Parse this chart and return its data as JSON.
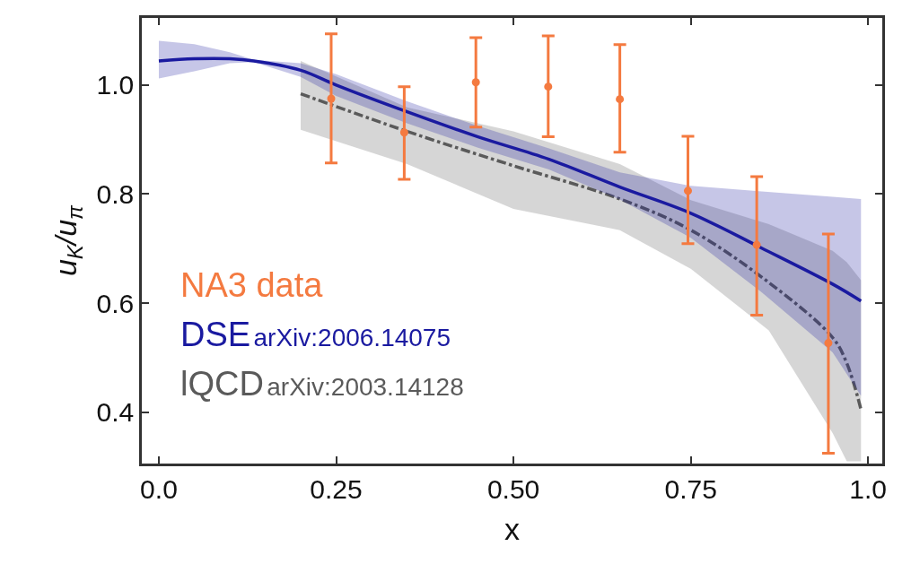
{
  "chart_data": {
    "type": "line",
    "xlabel": "x",
    "ylabel": "u$_{K}$/u$_{π}$",
    "xlim": [
      -0.024,
      1.02
    ],
    "ylim": [
      0.306,
      1.123
    ],
    "xticks": [
      {
        "value": 0,
        "label": "0.0"
      },
      0.25,
      {
        "value": 0.5,
        "label": "0.50"
      },
      0.75,
      {
        "value": 1,
        "label": "1.0"
      }
    ],
    "yticks": [
      0.4,
      0.6,
      0.8,
      {
        "value": 1,
        "label": "1.0"
      }
    ],
    "grid": false,
    "annotations": [
      "arXiv:2006.14075",
      "arXiv:2003.14128"
    ],
    "series": [
      {
        "name": "NA3 data",
        "type": "scatter",
        "marker": "circle",
        "color": "#f47a40",
        "x": [
          0.243,
          0.346,
          0.447,
          0.549,
          0.65,
          0.746,
          0.843,
          0.944
        ],
        "values": [
          0.975,
          0.913,
          1.005,
          0.997,
          0.974,
          0.806,
          0.707,
          0.527
        ],
        "errors": [
          [
            0.857,
            1.094
          ],
          [
            0.827,
            0.997
          ],
          [
            0.923,
            1.087
          ],
          [
            0.905,
            1.09
          ],
          [
            0.877,
            1.074
          ],
          [
            0.709,
            0.906
          ],
          [
            0.578,
            0.832
          ],
          [
            0.325,
            0.727
          ]
        ]
      },
      {
        "name": "DSE",
        "line_style": "solid",
        "color": "#1a1aa0",
        "x": [
          0,
          0.05,
          0.1,
          0.134,
          0.2,
          0.25,
          0.35,
          0.45,
          0.55,
          0.65,
          0.75,
          0.85,
          0.95,
          0.99
        ],
        "values": [
          1.044,
          1.048,
          1.048,
          1.044,
          1.027,
          1.0,
          0.951,
          0.905,
          0.864,
          0.813,
          0.765,
          0.701,
          0.635,
          0.604
        ],
        "upper": [
          1.081,
          1.075,
          1.06,
          1.046,
          1.04,
          1.02,
          0.97,
          0.925,
          0.884,
          0.84,
          0.815,
          0.805,
          0.795,
          0.791
        ],
        "lower": [
          1.012,
          1.025,
          1.04,
          1.042,
          1.015,
          0.98,
          0.93,
          0.885,
          0.845,
          0.79,
          0.72,
          0.62,
          0.51,
          0.43
        ]
      },
      {
        "name": "lQCD",
        "line_style": "dashdot",
        "color": "#5a5a5a",
        "x": [
          0.2,
          0.35,
          0.5,
          0.65,
          0.75,
          0.86,
          0.95,
          0.97,
          0.99
        ],
        "values": [
          0.984,
          0.915,
          0.852,
          0.791,
          0.734,
          0.638,
          0.537,
          0.49,
          0.405
        ],
        "upper": [
          1.044,
          0.959,
          0.915,
          0.855,
          0.789,
          0.745,
          0.696,
          0.675,
          0.642
        ],
        "lower": [
          0.918,
          0.855,
          0.773,
          0.734,
          0.663,
          0.55,
          0.362,
          0.31,
          0.31
        ]
      }
    ]
  }
}
